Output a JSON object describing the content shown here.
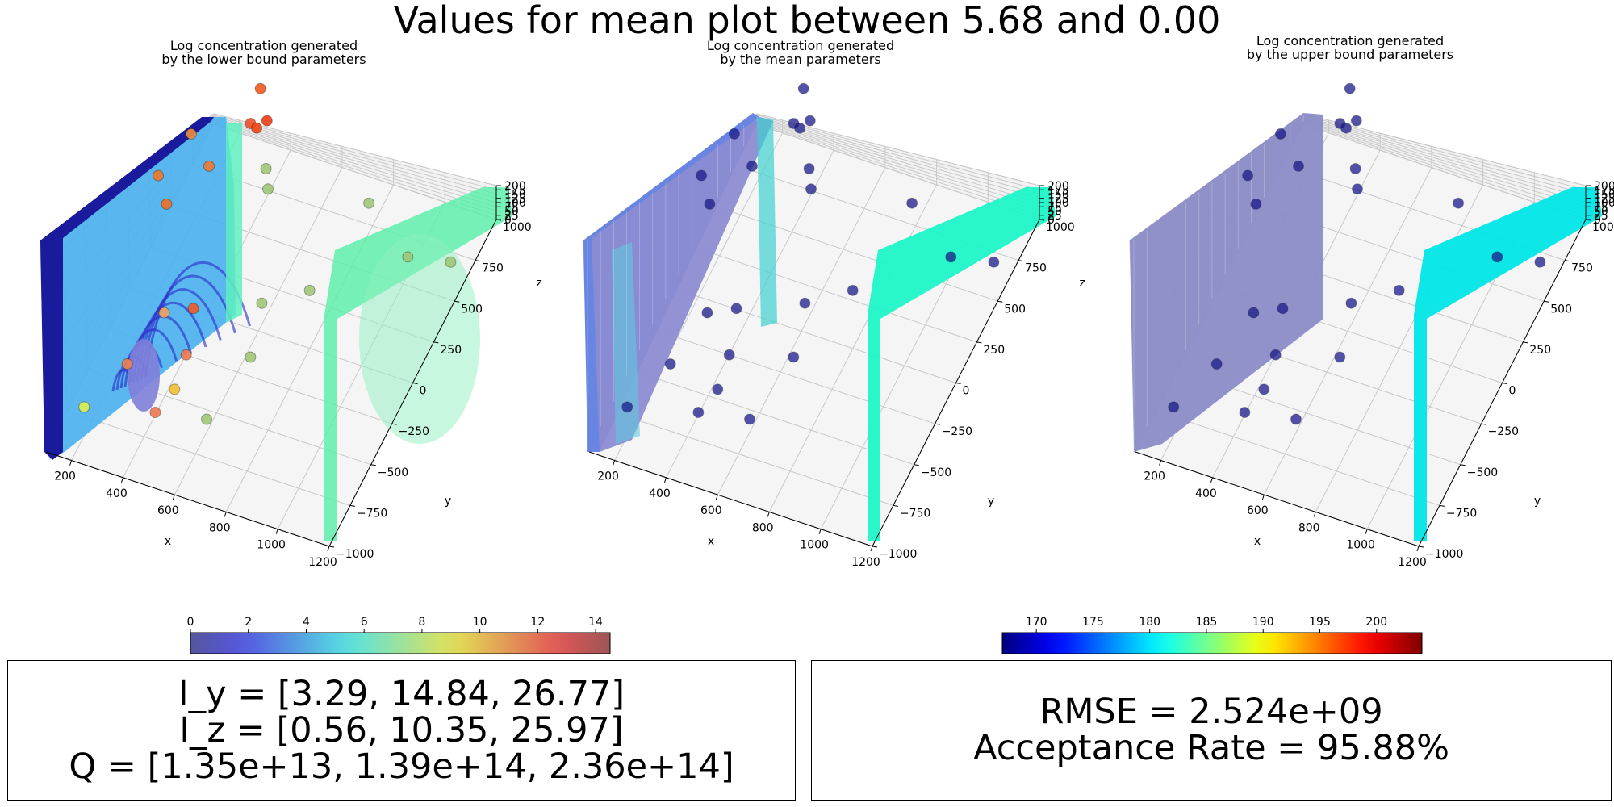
{
  "suptitle": "Values for mean plot between 5.68 and 0.00",
  "chart_data": [
    {
      "type": "scatter",
      "title_line1": "Log concentration generated",
      "title_line2": "by the lower bound parameters",
      "xlabel": "x",
      "ylabel": "y",
      "zlabel": "z",
      "xlim": [
        100,
        1200
      ],
      "ylim": [
        -1000,
        1000
      ],
      "zlim": [
        0,
        200
      ],
      "x_ticks": [
        "200",
        "400",
        "600",
        "800",
        "1000",
        "1200"
      ],
      "y_ticks": [
        "−1000",
        "−750",
        "−500",
        "−250",
        "0",
        "250",
        "500",
        "750",
        "1000"
      ],
      "z_ticks": [
        "0",
        "25",
        "50",
        "75",
        "100",
        "125",
        "150",
        "175",
        "200"
      ],
      "surface_colors": {
        "back": "#1a1a9c",
        "side": "#55f0a8"
      },
      "points": [
        {
          "x": 520,
          "y": 300,
          "z": 190,
          "color": "#f05a1e"
        },
        {
          "x": 560,
          "y": 250,
          "z": 170,
          "color": "#f03c14"
        },
        {
          "x": 300,
          "y": 150,
          "z": 145,
          "color": "#f08c3c"
        },
        {
          "x": 480,
          "y": 300,
          "z": 150,
          "color": "#f05028"
        },
        {
          "x": 510,
          "y": 280,
          "z": 152,
          "color": "#f04614"
        },
        {
          "x": 220,
          "y": 0,
          "z": 120,
          "color": "#f07828"
        },
        {
          "x": 350,
          "y": 200,
          "z": 110,
          "color": "#f07832"
        },
        {
          "x": 520,
          "y": 350,
          "z": 100,
          "color": "#a0c878"
        },
        {
          "x": 250,
          "y": 0,
          "z": 95,
          "color": "#f06e28"
        },
        {
          "x": 560,
          "y": 250,
          "z": 100,
          "color": "#a0c878"
        },
        {
          "x": 900,
          "y": 400,
          "z": 95,
          "color": "#a0c878"
        },
        {
          "x": 300,
          "y": -200,
          "z": 25,
          "color": "#f0a060"
        },
        {
          "x": 380,
          "y": -100,
          "z": 20,
          "color": "#f05a28"
        },
        {
          "x": 220,
          "y": -400,
          "z": 0,
          "color": "#f08050"
        },
        {
          "x": 400,
          "y": -250,
          "z": 0,
          "color": "#f07850"
        },
        {
          "x": 580,
          "y": 100,
          "z": 10,
          "color": "#a0c878"
        },
        {
          "x": 700,
          "y": 300,
          "z": 0,
          "color": "#a0c878"
        },
        {
          "x": 150,
          "y": -700,
          "z": 0,
          "color": "#e0f050"
        },
        {
          "x": 420,
          "y": -450,
          "z": 0,
          "color": "#f0c030"
        },
        {
          "x": 360,
          "y": -500,
          "z": -20,
          "color": "#f07850"
        },
        {
          "x": 600,
          "y": -100,
          "z": -10,
          "color": "#a0c878"
        },
        {
          "x": 560,
          "y": -500,
          "z": -10,
          "color": "#a0c878"
        },
        {
          "x": 1150,
          "y": 600,
          "z": 20,
          "color": "#a0c878"
        },
        {
          "x": 1000,
          "y": 550,
          "z": 20,
          "color": "#a0c878"
        }
      ]
    },
    {
      "type": "scatter",
      "title_line1": "Log concentration generated",
      "title_line2": "by the mean parameters",
      "xlabel": "x",
      "ylabel": "y",
      "zlabel": "z",
      "xlim": [
        100,
        1200
      ],
      "ylim": [
        -1000,
        1000
      ],
      "zlim": [
        0,
        200
      ],
      "x_ticks": [
        "200",
        "400",
        "600",
        "800",
        "1000",
        "1200"
      ],
      "y_ticks": [
        "−1000",
        "−750",
        "−500",
        "−250",
        "0",
        "250",
        "500",
        "750",
        "1000"
      ],
      "z_ticks": [
        "0",
        "25",
        "50",
        "75",
        "100",
        "125",
        "150",
        "175",
        "200"
      ],
      "surface_colors": {
        "back": "#8c8cd2",
        "side": "#1ef5c8"
      },
      "points_color": "#1a1a8c"
    },
    {
      "type": "scatter",
      "title_line1": "Log concentration generated",
      "title_line2": "by the upper bound parameters",
      "xlabel": "x",
      "ylabel": "y",
      "zlabel": "z",
      "xlim": [
        100,
        1200
      ],
      "ylim": [
        -1000,
        1000
      ],
      "zlim": [
        0,
        200
      ],
      "x_ticks": [
        "200",
        "400",
        "600",
        "800",
        "1000",
        "1200"
      ],
      "y_ticks": [
        "−1000",
        "−750",
        "−500",
        "−250",
        "0",
        "250",
        "500",
        "750",
        "1000"
      ],
      "z_ticks": [
        "0",
        "25",
        "50",
        "75",
        "100",
        "125",
        "150",
        "175",
        "200"
      ],
      "surface_colors": {
        "back": "#8c8cc8",
        "side": "#00e6e6"
      },
      "points_color": "#1a1a8c"
    }
  ],
  "colorbars": [
    {
      "ticks": [
        "0",
        "2",
        "4",
        "6",
        "8",
        "10",
        "12",
        "14"
      ],
      "range": [
        0,
        14.5
      ],
      "colormap": "jet-light"
    },
    {
      "ticks": [
        "170",
        "175",
        "180",
        "185",
        "190",
        "195",
        "200"
      ],
      "range": [
        167,
        204
      ],
      "colormap": "jet"
    }
  ],
  "info_left": {
    "line1": "I_y = [3.29, 14.84, 26.77]",
    "line2": "I_z = [0.56, 10.35, 25.97]",
    "line3": "Q = [1.35e+13, 1.39e+14, 2.36e+14]"
  },
  "info_right": {
    "line1": "RMSE = 2.524e+09",
    "line2": "Acceptance Rate = 95.88%"
  }
}
